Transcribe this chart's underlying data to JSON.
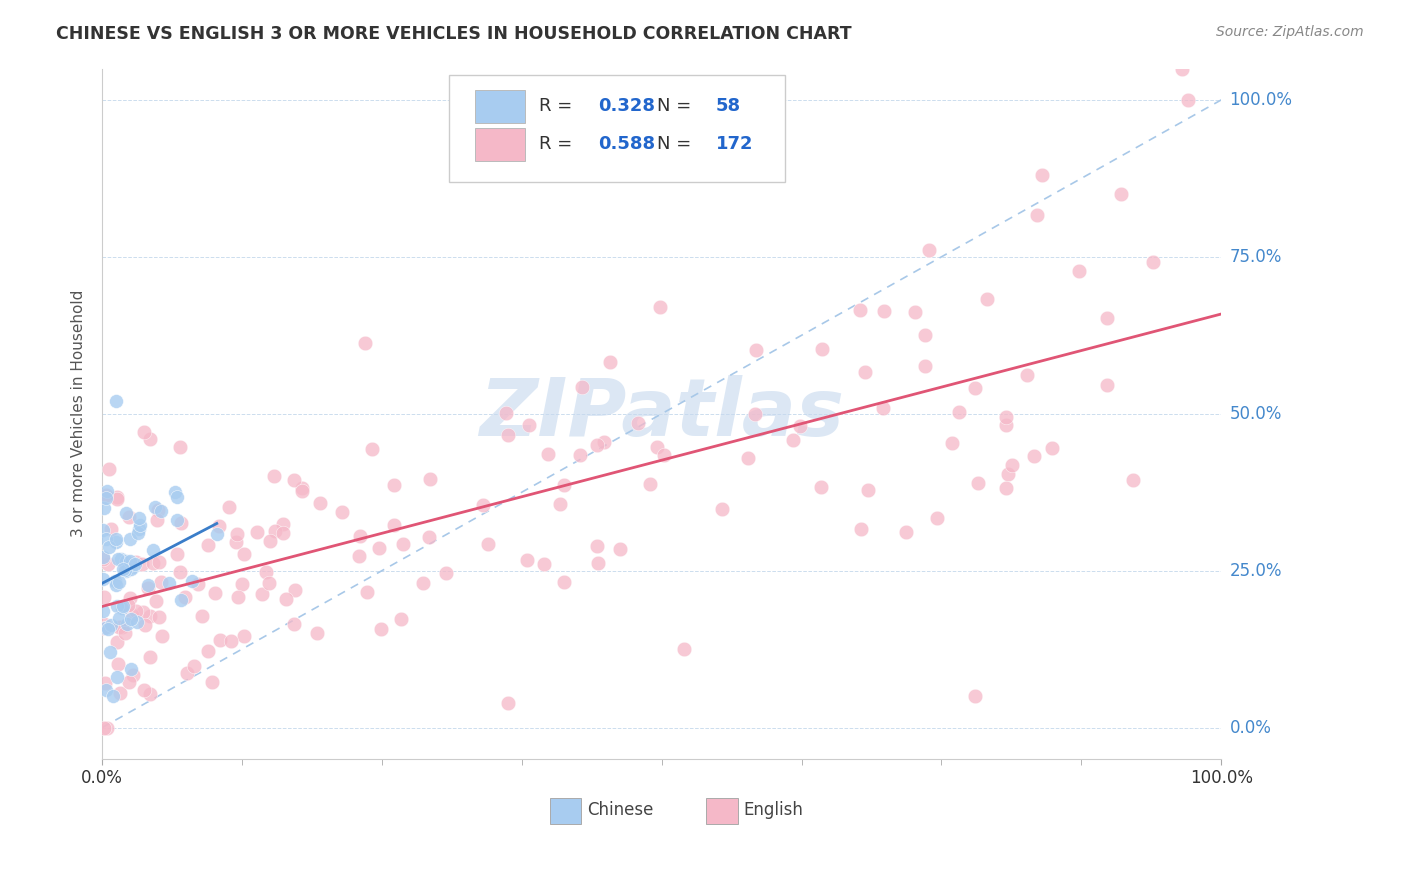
{
  "title": "CHINESE VS ENGLISH 3 OR MORE VEHICLES IN HOUSEHOLD CORRELATION CHART",
  "source": "Source: ZipAtlas.com",
  "ylabel": "3 or more Vehicles in Household",
  "ytick_labels": [
    "0.0%",
    "25.0%",
    "50.0%",
    "75.0%",
    "100.0%"
  ],
  "ytick_values": [
    0.0,
    0.25,
    0.5,
    0.75,
    1.0
  ],
  "xtick_left_label": "0.0%",
  "xtick_right_label": "100.0%",
  "chinese_R": 0.328,
  "chinese_N": 58,
  "english_R": 0.588,
  "english_N": 172,
  "chinese_color": "#A8CCF0",
  "chinese_line_color": "#3A7DC9",
  "english_color": "#F5B8C8",
  "english_line_color": "#E05575",
  "diagonal_color": "#A8C8E8",
  "watermark": "ZIPatlas",
  "watermark_color": "#C5D8EE",
  "background_color": "#FFFFFF",
  "legend_r_color": "#2266CC",
  "legend_n_color": "#2266CC",
  "ytick_color": "#4488CC",
  "xtick_color": "#333333",
  "title_color": "#333333",
  "source_color": "#888888",
  "ylabel_color": "#555555",
  "grid_color": "#CCDDEE",
  "xlim": [
    0,
    100
  ],
  "ylim": [
    -0.05,
    1.05
  ]
}
